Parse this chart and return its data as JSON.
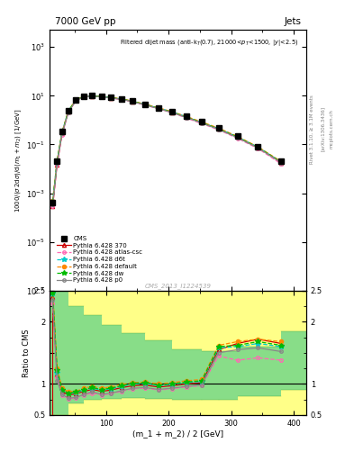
{
  "title_top": "7000 GeV pp",
  "title_right": "Jets",
  "watermark": "CMS_2013_I1224539",
  "xlabel": "(m_1 + m_2) / 2 [GeV]",
  "ylabel_ratio": "Ratio to CMS",
  "x_data": [
    15,
    22,
    30,
    40,
    52,
    65,
    78,
    93,
    108,
    125,
    143,
    163,
    184,
    206,
    229,
    253,
    280,
    310,
    343,
    380
  ],
  "cms_y": [
    0.0004,
    0.02,
    0.35,
    2.5,
    7.0,
    9.5,
    10.0,
    9.5,
    8.5,
    7.5,
    6.0,
    4.5,
    3.2,
    2.2,
    1.4,
    0.85,
    0.48,
    0.22,
    0.08,
    0.02
  ],
  "py370_y": [
    0.0003,
    0.015,
    0.28,
    2.2,
    6.5,
    9.2,
    9.8,
    9.2,
    8.2,
    7.2,
    5.8,
    4.3,
    3.0,
    2.1,
    1.3,
    0.78,
    0.44,
    0.2,
    0.075,
    0.018
  ],
  "py_atlas_y": [
    0.0003,
    0.015,
    0.25,
    2.0,
    6.2,
    9.0,
    9.6,
    9.0,
    8.0,
    7.0,
    5.6,
    4.1,
    2.9,
    2.0,
    1.2,
    0.72,
    0.4,
    0.18,
    0.068,
    0.016
  ],
  "py_d6t_y": [
    0.0004,
    0.02,
    0.32,
    2.3,
    6.8,
    9.4,
    9.9,
    9.4,
    8.4,
    7.4,
    5.9,
    4.4,
    3.1,
    2.15,
    1.35,
    0.8,
    0.45,
    0.205,
    0.077,
    0.019
  ],
  "py_default_y": [
    0.0005,
    0.022,
    0.33,
    2.4,
    6.9,
    9.5,
    10.0,
    9.5,
    8.5,
    7.5,
    6.0,
    4.5,
    3.2,
    2.2,
    1.4,
    0.84,
    0.47,
    0.215,
    0.08,
    0.02
  ],
  "py_dw_y": [
    0.00045,
    0.021,
    0.31,
    2.35,
    6.7,
    9.3,
    9.9,
    9.3,
    8.3,
    7.3,
    5.85,
    4.35,
    3.05,
    2.12,
    1.32,
    0.79,
    0.44,
    0.202,
    0.076,
    0.019
  ],
  "py_p0_y": [
    0.00035,
    0.018,
    0.29,
    2.1,
    6.3,
    9.1,
    9.7,
    9.1,
    8.1,
    7.1,
    5.7,
    4.2,
    2.95,
    2.05,
    1.28,
    0.76,
    0.42,
    0.192,
    0.072,
    0.018
  ],
  "ratio_py370": [
    2.4,
    1.15,
    0.88,
    0.82,
    0.84,
    0.88,
    0.91,
    0.88,
    0.9,
    0.94,
    0.97,
    0.98,
    0.95,
    0.97,
    1.0,
    1.02,
    1.55,
    1.65,
    1.72,
    1.65
  ],
  "ratio_atlas": [
    2.3,
    1.1,
    0.82,
    0.76,
    0.77,
    0.82,
    0.85,
    0.82,
    0.84,
    0.88,
    0.92,
    0.93,
    0.9,
    0.92,
    0.95,
    0.97,
    1.45,
    1.38,
    1.42,
    1.38
  ],
  "ratio_d6t": [
    2.45,
    1.18,
    0.9,
    0.84,
    0.86,
    0.9,
    0.93,
    0.9,
    0.92,
    0.96,
    1.0,
    1.01,
    0.97,
    0.99,
    1.02,
    1.04,
    1.58,
    1.6,
    1.65,
    1.6
  ],
  "ratio_default": [
    2.5,
    1.25,
    0.93,
    0.87,
    0.88,
    0.93,
    0.96,
    0.93,
    0.95,
    0.99,
    1.02,
    1.03,
    1.0,
    1.02,
    1.05,
    1.07,
    1.62,
    1.68,
    1.72,
    1.68
  ],
  "ratio_dw": [
    2.47,
    1.22,
    0.91,
    0.85,
    0.87,
    0.91,
    0.94,
    0.91,
    0.93,
    0.97,
    1.01,
    1.02,
    0.98,
    1.0,
    1.03,
    1.05,
    1.6,
    1.62,
    1.68,
    1.62
  ],
  "ratio_p0": [
    2.35,
    1.05,
    0.83,
    0.77,
    0.78,
    0.83,
    0.87,
    0.83,
    0.85,
    0.89,
    0.93,
    0.94,
    0.91,
    0.93,
    0.96,
    0.98,
    1.5,
    1.55,
    1.58,
    1.52
  ],
  "yellow_band_edges": [
    10,
    22,
    40,
    65,
    93,
    125,
    163,
    206,
    253,
    280,
    310,
    380,
    420
  ],
  "yellow_band_lo": [
    0.5,
    0.5,
    0.5,
    0.5,
    0.5,
    0.5,
    0.5,
    0.5,
    0.5,
    0.5,
    0.5,
    0.5,
    0.5
  ],
  "yellow_band_hi": [
    2.5,
    2.5,
    2.5,
    2.5,
    2.5,
    2.5,
    2.5,
    2.5,
    2.5,
    2.5,
    2.5,
    2.5,
    2.5
  ],
  "green_band_edges": [
    10,
    22,
    40,
    65,
    93,
    125,
    163,
    206,
    253,
    280,
    310,
    380,
    420
  ],
  "green_band_lo": [
    0.5,
    0.5,
    0.68,
    0.74,
    0.76,
    0.77,
    0.76,
    0.74,
    0.74,
    0.74,
    0.8,
    0.9,
    0.5
  ],
  "green_band_hi": [
    2.5,
    2.5,
    2.25,
    2.1,
    1.95,
    1.82,
    1.7,
    1.55,
    1.52,
    1.52,
    1.6,
    1.85,
    2.5
  ],
  "color_370": "#cc0000",
  "color_atlas": "#ff69b4",
  "color_d6t": "#00cccc",
  "color_default": "#ff8800",
  "color_dw": "#00bb00",
  "color_p0": "#888888",
  "color_cms": "#000000",
  "xmin": 10,
  "xmax": 420,
  "ymin": 1e-07,
  "ymax": 5000.0,
  "ratio_ymin": 0.5,
  "ratio_ymax": 2.5
}
